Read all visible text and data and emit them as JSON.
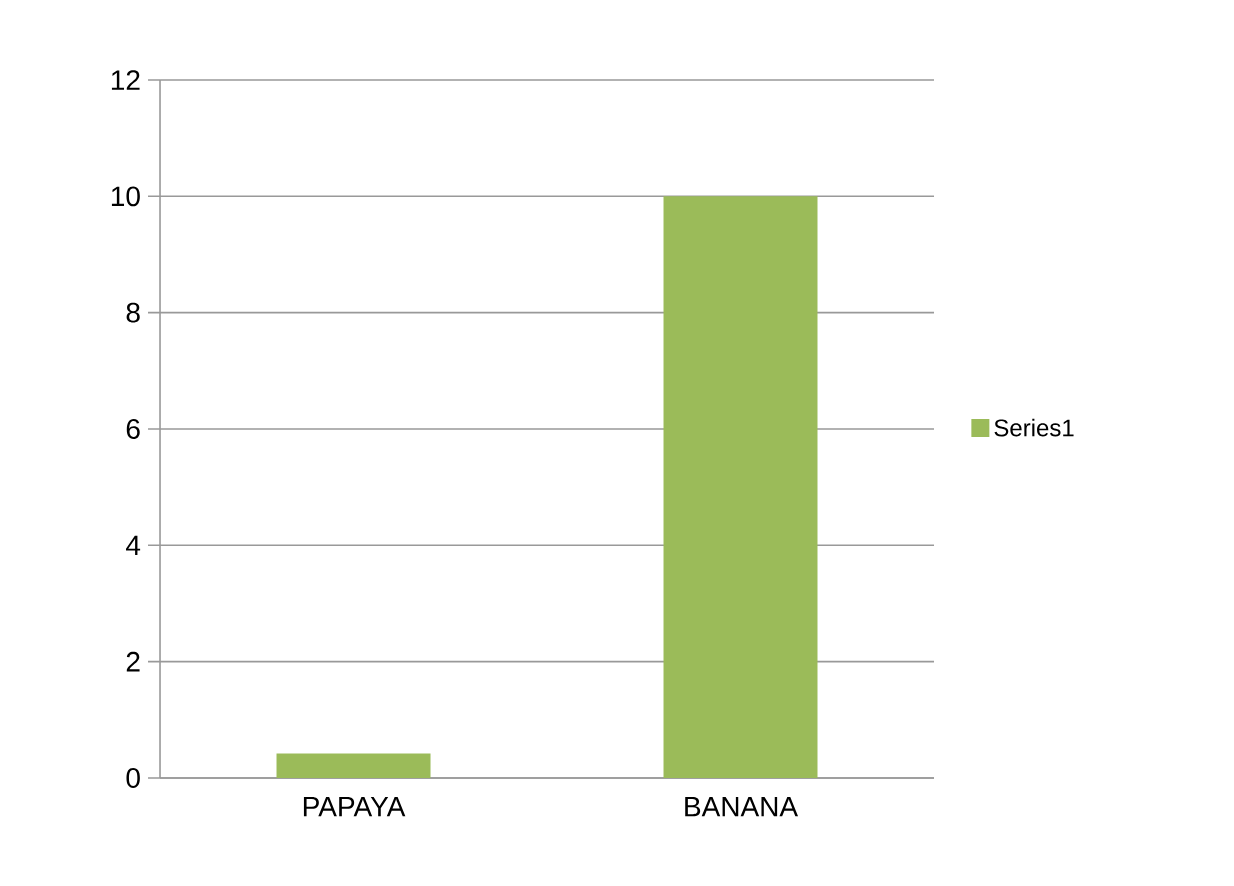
{
  "chart_data": {
    "type": "bar",
    "categories": [
      "PAPAYA",
      "BANANA"
    ],
    "series": [
      {
        "name": "Series1",
        "color": "#9bbb59",
        "values": [
          0.42,
          10.0
        ]
      }
    ],
    "ylim": [
      0,
      12
    ],
    "yticks": [
      0,
      2,
      4,
      6,
      8,
      10,
      12
    ],
    "grid": "y",
    "legend": "right"
  }
}
